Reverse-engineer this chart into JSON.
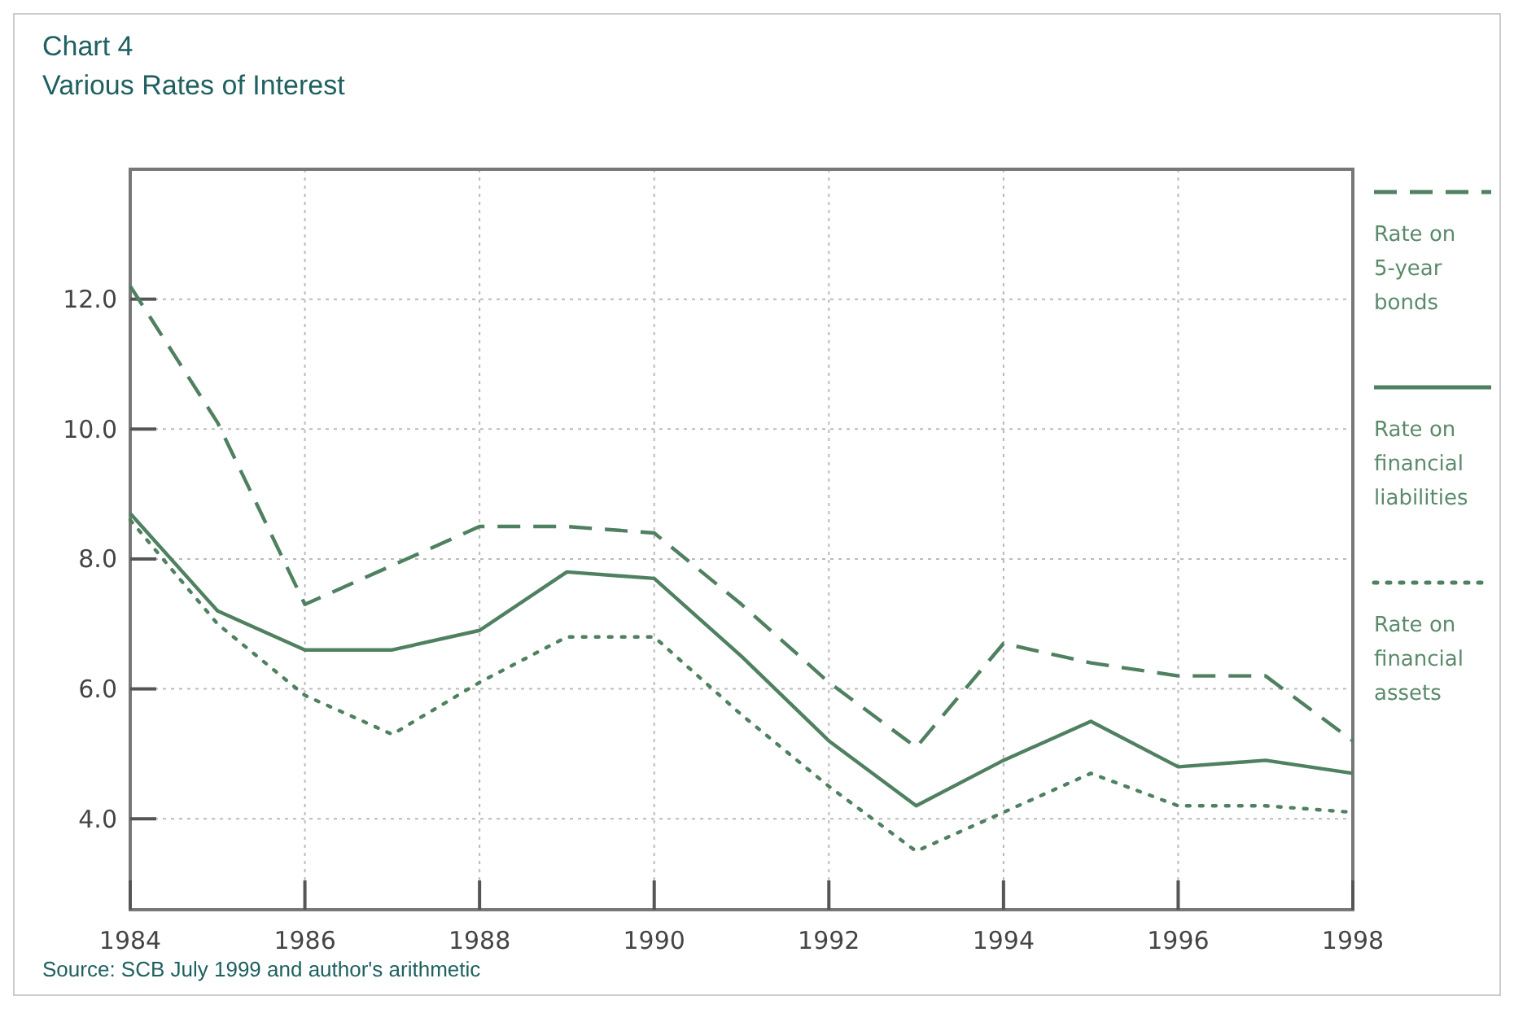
{
  "chart_data": {
    "type": "line",
    "title": "Chart 4",
    "subtitle": "Various Rates of Interest",
    "x": [
      1984,
      1985,
      1986,
      1987,
      1988,
      1989,
      1990,
      1991,
      1992,
      1993,
      1994,
      1995,
      1996,
      1997,
      1998
    ],
    "series": [
      {
        "name": "Rate on 5-year bonds",
        "color": "#4f8060",
        "line_style": "dashed",
        "values": [
          12.2,
          10.1,
          7.3,
          7.9,
          8.5,
          8.5,
          8.4,
          7.3,
          6.1,
          5.1,
          6.7,
          6.4,
          6.2,
          6.2,
          5.2
        ]
      },
      {
        "name": "Rate on financial liabilities",
        "color": "#4f8060",
        "line_style": "solid",
        "values": [
          8.7,
          7.2,
          6.6,
          6.6,
          6.9,
          7.8,
          7.7,
          6.5,
          5.2,
          4.2,
          4.9,
          5.5,
          4.8,
          4.9,
          4.7
        ]
      },
      {
        "name": "Rate on financial assets",
        "color": "#4f8060",
        "line_style": "dotted",
        "values": [
          8.6,
          7.0,
          5.9,
          5.3,
          6.1,
          6.8,
          6.8,
          5.6,
          4.5,
          3.5,
          4.1,
          4.7,
          4.2,
          4.2,
          4.1
        ]
      }
    ],
    "xlim": [
      1984,
      1998
    ],
    "xticks": [
      1984,
      1986,
      1988,
      1990,
      1992,
      1994,
      1996,
      1998
    ],
    "ylim": [
      2.6,
      14.0
    ],
    "yticks": [
      {
        "value": 4,
        "label": "4.0"
      },
      {
        "value": 6,
        "label": "6.0"
      },
      {
        "value": 8,
        "label": "8.0"
      },
      {
        "value": 10,
        "label": "10.0"
      },
      {
        "value": 12,
        "label": "12.0"
      }
    ],
    "grid": true,
    "legend": "right",
    "marker": "none",
    "annotations": [
      "Source: SCB July 1999 and author's arithmetic"
    ]
  }
}
